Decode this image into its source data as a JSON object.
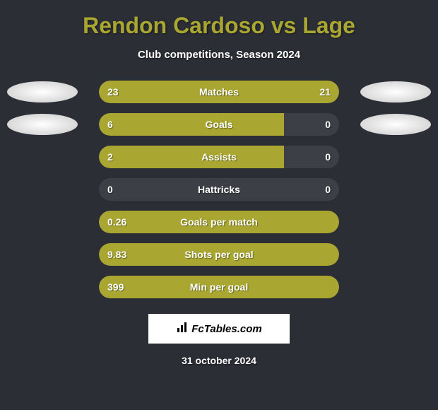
{
  "title": "Rendon Cardoso vs Lage",
  "subtitle": "Club competitions, Season 2024",
  "date": "31 october 2024",
  "watermark": "FcTables.com",
  "colors": {
    "background": "#2c2e36",
    "bar_bg": "#3d3f47",
    "bar_fill": "#a9a731",
    "title_color": "#a9a731",
    "text_color": "#ffffff",
    "ellipse_color": "#e8e8e8"
  },
  "stats": [
    {
      "label": "Matches",
      "left_val": "23",
      "right_val": "21",
      "left_pct": 52,
      "right_pct": 48,
      "show_ellipses": true
    },
    {
      "label": "Goals",
      "left_val": "6",
      "right_val": "0",
      "left_pct": 77,
      "right_pct": 0,
      "show_ellipses": true
    },
    {
      "label": "Assists",
      "left_val": "2",
      "right_val": "0",
      "left_pct": 77,
      "right_pct": 0,
      "show_ellipses": false
    },
    {
      "label": "Hattricks",
      "left_val": "0",
      "right_val": "0",
      "left_pct": 0,
      "right_pct": 0,
      "show_ellipses": false
    },
    {
      "label": "Goals per match",
      "left_val": "0.26",
      "right_val": "",
      "left_pct": 100,
      "right_pct": 0,
      "show_ellipses": false
    },
    {
      "label": "Shots per goal",
      "left_val": "9.83",
      "right_val": "",
      "left_pct": 100,
      "right_pct": 0,
      "show_ellipses": false
    },
    {
      "label": "Min per goal",
      "left_val": "399",
      "right_val": "",
      "left_pct": 100,
      "right_pct": 0,
      "show_ellipses": false
    }
  ]
}
